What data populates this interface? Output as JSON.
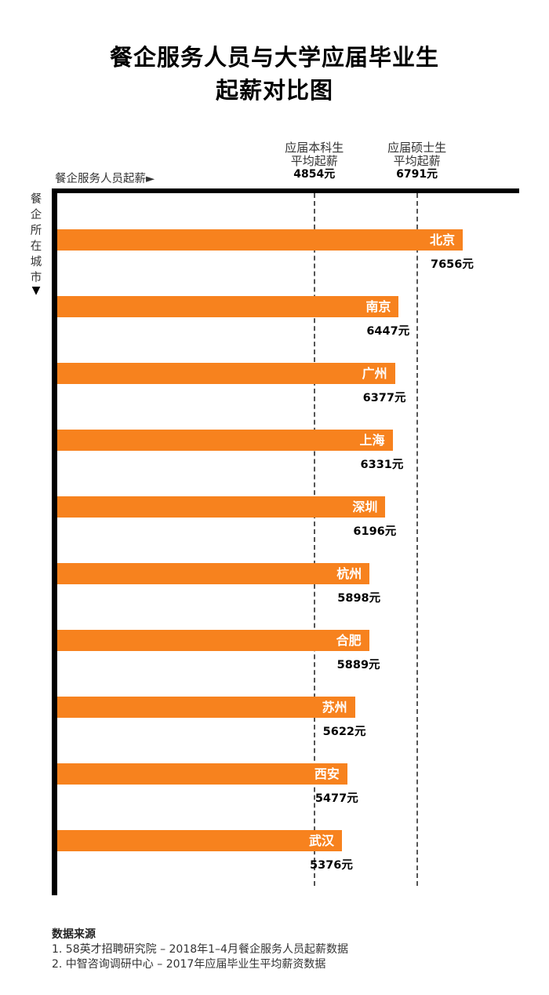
{
  "header": {
    "title_line1": "餐企服务人员与大学应届毕业生",
    "title_line2": "起薪对比图"
  },
  "references": [
    {
      "line1": "应届本科生",
      "line2": "平均起薪",
      "value_label": "4854元",
      "value": 4854
    },
    {
      "line1": "应届硕士生",
      "line2": "平均起薪",
      "value_label": "6791元",
      "value": 6791
    }
  ],
  "axes": {
    "x_label": "餐企服务人员起薪►",
    "y_label": "餐企所在城市",
    "y_arrow": "▼"
  },
  "chart_data": {
    "type": "bar",
    "orientation": "horizontal",
    "title": "餐企服务人员与大学应届毕业生起薪对比图",
    "xlabel": "餐企服务人员起薪",
    "ylabel": "餐企所在城市",
    "categories": [
      "北京",
      "南京",
      "广州",
      "上海",
      "深圳",
      "杭州",
      "合肥",
      "苏州",
      "西安",
      "武汉"
    ],
    "values": [
      7656,
      6447,
      6377,
      6331,
      6196,
      5898,
      5889,
      5622,
      5477,
      5376
    ],
    "value_labels": [
      "7656元",
      "6447元",
      "6377元",
      "6331元",
      "6196元",
      "5898元",
      "5889元",
      "5622元",
      "5477元",
      "5376元"
    ],
    "reference_lines": [
      4854,
      6791
    ],
    "bar_color": "#F7821E",
    "grid": false
  },
  "footer": {
    "title": "数据来源",
    "sources": [
      "1. 58英才招聘研究院 – 2018年1–4月餐企服务人员起薪数据",
      "2. 中智咨询调研中心 – 2017年应届毕业生平均薪资数据"
    ]
  }
}
